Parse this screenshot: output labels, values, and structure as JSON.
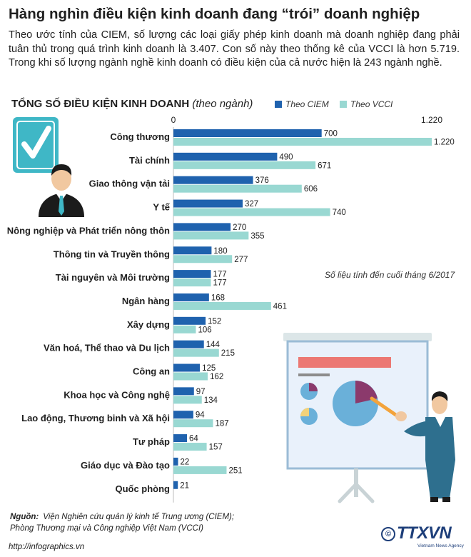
{
  "headline": "Hàng nghìn điều kiện kinh doanh đang “trói” doanh nghiệp",
  "lede": "Theo ước tính của CIEM, số lượng các loại giấy phép kinh doanh mà doanh nghiệp đang phải tuân thủ trong quá trình kinh doanh là 3.407. Con số này theo thống kê của VCCI là hơn 5.719. Trong khi số lượng ngành nghề kinh doanh có điều kiện của cả nước hiện là 243 ngành nghề.",
  "colors": {
    "ciem": "#1f62ae",
    "vcci": "#99d8d2",
    "accent": "#3fb7c6"
  },
  "chart_data": {
    "type": "bar",
    "orientation": "horizontal",
    "title": "TỔNG SỐ ĐIỀU KIỆN KINH DOANH",
    "unit": "(theo ngành)",
    "axis_labels": [
      "0",
      "1.220"
    ],
    "xlim": [
      0,
      1220
    ],
    "legend_position": "top-right",
    "categories": [
      "Công thương",
      "Tài chính",
      "Giao thông vận tải",
      "Y tế",
      "Nông nghiệp và Phát triển nông thôn",
      "Thông tin và Truyền thông",
      "Tài nguyên và Môi trường",
      "Ngân hàng",
      "Xây dựng",
      "Văn hoá, Thể thao và Du lịch",
      "Công an",
      "Khoa học và Công nghệ",
      "Lao động, Thương binh và Xã hội",
      "Tư pháp",
      "Giáo dục và Đào tạo",
      "Quốc phòng"
    ],
    "series": [
      {
        "name": "Theo CIEM",
        "values": [
          700,
          490,
          376,
          327,
          270,
          180,
          177,
          168,
          152,
          144,
          125,
          97,
          94,
          64,
          22,
          21
        ],
        "labels": [
          "700",
          "490",
          "376",
          "327",
          "270",
          "180",
          "177",
          "168",
          "152",
          "144",
          "125",
          "97",
          "94",
          "64",
          "22",
          "21"
        ]
      },
      {
        "name": "Theo VCCI",
        "values": [
          1220,
          671,
          606,
          740,
          355,
          277,
          177,
          461,
          106,
          215,
          162,
          134,
          187,
          157,
          251,
          null
        ],
        "labels": [
          "1.220",
          "671",
          "606",
          "740",
          "355",
          "277",
          "177",
          "461",
          "106",
          "215",
          "162",
          "134",
          "187",
          "157",
          "251",
          ""
        ]
      }
    ]
  },
  "note": "Số liệu tính đến cuối tháng 6/2017",
  "source": {
    "label": "Nguồn:",
    "lines": [
      "Viện Nghiên cứu quản lý kinh tế Trung ương (CIEM);",
      "Phòng Thương mại và Công nghiệp Việt Nam (VCCI)"
    ]
  },
  "website": "http://infographics.vn",
  "copyright_symbol": "©",
  "agency_logo": "TTXVN",
  "agency_subtitle": "Vietnam News Agency",
  "icons": [
    "checkmark-icon",
    "businessman-icon",
    "presentation-board-icon",
    "presenter-icon"
  ]
}
